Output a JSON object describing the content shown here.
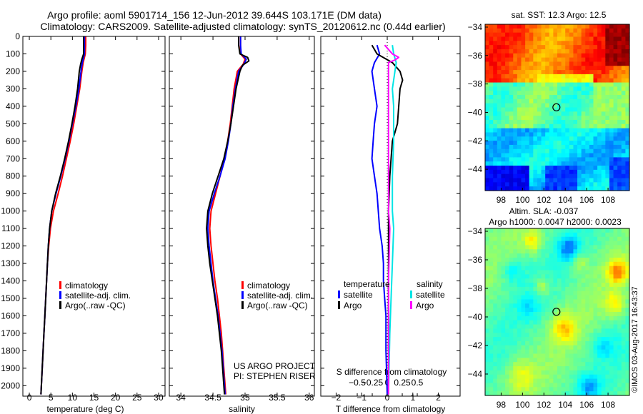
{
  "title_line1": "Argo profile: aoml 5901714_156 12-Jun-2012 39.644S 103.171E (DM data)",
  "title_line2": "Climatology: CARS2009. Satellite-adjusted climatology: synTS_20120612.nc (0.44d earlier)",
  "project_line1": "US ARGO PROJECT",
  "project_line2": "PI: STEPHEN RISER",
  "footer_stamp": "©IMOS 03-Aug-2017 16:43:37",
  "colors": {
    "climatology": "#ff0000",
    "satellite": "#0000ff",
    "argo": "#000000",
    "sal_satellite": "#00e5e5",
    "sal_argo": "#ff00ff"
  },
  "chart_data": [
    {
      "type": "line",
      "name": "temperature-profile",
      "xlabel": "temperature (deg C)",
      "xlim": [
        -1.5,
        31.5
      ],
      "ylim": [
        0,
        2060
      ],
      "y_reversed": true,
      "xticks": [
        0,
        5,
        10,
        15,
        20,
        25,
        30
      ],
      "yticks": [
        0,
        100,
        200,
        300,
        400,
        500,
        600,
        700,
        800,
        900,
        1000,
        1100,
        1200,
        1300,
        1400,
        1500,
        1600,
        1700,
        1800,
        1900,
        2000
      ],
      "legend": [
        "climatology",
        "satellite-adj. clim.",
        "Argo(..raw -QC)"
      ],
      "series": [
        {
          "name": "climatology",
          "color": "#ff0000",
          "width": 2,
          "points": [
            [
              13.1,
              0
            ],
            [
              13.1,
              50
            ],
            [
              13.0,
              100
            ],
            [
              12.5,
              150
            ],
            [
              12.2,
              200
            ],
            [
              11.7,
              300
            ],
            [
              11.0,
              400
            ],
            [
              10.3,
              500
            ],
            [
              9.5,
              600
            ],
            [
              8.6,
              700
            ],
            [
              7.7,
              800
            ],
            [
              6.7,
              900
            ],
            [
              5.6,
              1000
            ],
            [
              4.9,
              1100
            ],
            [
              4.5,
              1200
            ],
            [
              4.2,
              1300
            ],
            [
              4.0,
              1400
            ],
            [
              3.8,
              1500
            ],
            [
              3.6,
              1600
            ],
            [
              3.4,
              1700
            ],
            [
              3.2,
              1800
            ],
            [
              3.0,
              1900
            ],
            [
              2.8,
              2000
            ],
            [
              2.7,
              2050
            ]
          ]
        },
        {
          "name": "satellite-adj. clim.",
          "color": "#0000ff",
          "width": 2,
          "points": [
            [
              12.8,
              0
            ],
            [
              12.8,
              50
            ],
            [
              12.8,
              100
            ],
            [
              12.3,
              150
            ],
            [
              12.0,
              200
            ],
            [
              11.5,
              300
            ],
            [
              10.8,
              400
            ],
            [
              10.0,
              500
            ],
            [
              9.2,
              600
            ],
            [
              8.3,
              700
            ],
            [
              7.3,
              800
            ],
            [
              6.2,
              900
            ],
            [
              5.2,
              1000
            ],
            [
              4.7,
              1100
            ],
            [
              4.4,
              1200
            ],
            [
              4.2,
              1300
            ],
            [
              4.0,
              1400
            ],
            [
              3.8,
              1500
            ],
            [
              3.6,
              1600
            ],
            [
              3.4,
              1700
            ],
            [
              3.2,
              1800
            ],
            [
              3.0,
              1900
            ],
            [
              2.8,
              2000
            ],
            [
              2.7,
              2050
            ]
          ]
        },
        {
          "name": "Argo(..raw -QC)",
          "color": "#000000",
          "width": 2,
          "points": [
            [
              12.6,
              0
            ],
            [
              12.6,
              50
            ],
            [
              12.6,
              100
            ],
            [
              12.2,
              130
            ],
            [
              11.9,
              160
            ],
            [
              11.6,
              200
            ],
            [
              11.2,
              300
            ],
            [
              10.6,
              400
            ],
            [
              9.9,
              500
            ],
            [
              9.1,
              600
            ],
            [
              8.2,
              700
            ],
            [
              7.2,
              800
            ],
            [
              6.1,
              900
            ],
            [
              5.2,
              1000
            ],
            [
              4.7,
              1100
            ],
            [
              4.4,
              1200
            ],
            [
              4.2,
              1300
            ],
            [
              4.0,
              1400
            ],
            [
              3.8,
              1500
            ],
            [
              3.6,
              1600
            ],
            [
              3.4,
              1700
            ],
            [
              3.2,
              1800
            ],
            [
              3.0,
              1900
            ],
            [
              2.8,
              2000
            ],
            [
              2.7,
              2050
            ]
          ]
        }
      ]
    },
    {
      "type": "line",
      "name": "salinity-profile",
      "xlabel": "salinity",
      "xlim": [
        33.82,
        36.08
      ],
      "ylim": [
        0,
        2060
      ],
      "y_reversed": true,
      "xticks": [
        34,
        34.5,
        35,
        35.5,
        36
      ],
      "legend": [
        "climatology",
        "satellite-adj. clim.",
        "Argo(..raw -QC)"
      ],
      "series": [
        {
          "name": "climatology",
          "color": "#ff0000",
          "width": 2,
          "points": [
            [
              34.93,
              0
            ],
            [
              34.93,
              50
            ],
            [
              34.93,
              100
            ],
            [
              35.0,
              130
            ],
            [
              34.97,
              160
            ],
            [
              34.88,
              200
            ],
            [
              34.83,
              300
            ],
            [
              34.8,
              400
            ],
            [
              34.77,
              500
            ],
            [
              34.73,
              600
            ],
            [
              34.68,
              700
            ],
            [
              34.61,
              800
            ],
            [
              34.54,
              900
            ],
            [
              34.47,
              1000
            ],
            [
              34.45,
              1100
            ],
            [
              34.47,
              1200
            ],
            [
              34.5,
              1300
            ],
            [
              34.53,
              1400
            ],
            [
              34.57,
              1500
            ],
            [
              34.6,
              1600
            ],
            [
              34.63,
              1700
            ],
            [
              34.65,
              1800
            ],
            [
              34.67,
              1900
            ],
            [
              34.69,
              2000
            ],
            [
              34.7,
              2050
            ]
          ]
        },
        {
          "name": "satellite-adj. clim.",
          "color": "#0000ff",
          "width": 2,
          "points": [
            [
              34.93,
              0
            ],
            [
              34.93,
              50
            ],
            [
              34.94,
              100
            ],
            [
              35.02,
              130
            ],
            [
              34.98,
              160
            ],
            [
              34.9,
              200
            ],
            [
              34.85,
              300
            ],
            [
              34.81,
              400
            ],
            [
              34.78,
              500
            ],
            [
              34.74,
              600
            ],
            [
              34.69,
              700
            ],
            [
              34.61,
              800
            ],
            [
              34.52,
              900
            ],
            [
              34.44,
              1000
            ],
            [
              34.42,
              1100
            ],
            [
              34.44,
              1200
            ],
            [
              34.47,
              1300
            ],
            [
              34.5,
              1400
            ],
            [
              34.54,
              1500
            ],
            [
              34.58,
              1600
            ],
            [
              34.61,
              1700
            ],
            [
              34.64,
              1800
            ],
            [
              34.66,
              1900
            ],
            [
              34.68,
              2000
            ],
            [
              34.69,
              2050
            ]
          ]
        },
        {
          "name": "Argo(..raw -QC)",
          "color": "#000000",
          "width": 2,
          "points": [
            [
              34.9,
              0
            ],
            [
              34.9,
              50
            ],
            [
              34.92,
              100
            ],
            [
              35.04,
              120
            ],
            [
              35.06,
              140
            ],
            [
              34.96,
              165
            ],
            [
              34.92,
              200
            ],
            [
              34.86,
              300
            ],
            [
              34.82,
              400
            ],
            [
              34.78,
              500
            ],
            [
              34.73,
              600
            ],
            [
              34.67,
              700
            ],
            [
              34.58,
              800
            ],
            [
              34.49,
              900
            ],
            [
              34.42,
              1000
            ],
            [
              34.4,
              1100
            ],
            [
              34.42,
              1200
            ],
            [
              34.45,
              1300
            ],
            [
              34.49,
              1400
            ],
            [
              34.53,
              1500
            ],
            [
              34.57,
              1600
            ],
            [
              34.6,
              1700
            ],
            [
              34.63,
              1800
            ],
            [
              34.65,
              1900
            ],
            [
              34.67,
              2000
            ],
            [
              34.68,
              2050
            ]
          ]
        }
      ]
    },
    {
      "type": "line",
      "name": "difference-profile",
      "xlabel": "T difference from climatology",
      "xlabel2": "S difference from climatology",
      "xlim": [
        -2.6,
        2.85
      ],
      "ylim": [
        0,
        2060
      ],
      "y_reversed": true,
      "xticks": [
        -2,
        -1,
        0,
        1,
        2
      ],
      "xticks2": [
        -0.5,
        -0.25,
        0,
        0.25,
        0.5
      ],
      "xticks2_labels": [
        "−0.5",
        "−0.25",
        "0",
        "0.25",
        "0.5"
      ],
      "legend_temperature_title": "temperature",
      "legend_salinity_title": "salinity",
      "legend_temperature": [
        "satellite",
        "Argo"
      ],
      "legend_salinity": [
        "satellite",
        "Argo"
      ],
      "series": [
        {
          "name": "temperature satellite",
          "color": "#0000ff",
          "width": 2,
          "points": [
            [
              -0.4,
              50
            ],
            [
              -0.3,
              100
            ],
            [
              -0.5,
              150
            ],
            [
              -0.6,
              200
            ],
            [
              -0.5,
              300
            ],
            [
              -0.4,
              400
            ],
            [
              -0.5,
              500
            ],
            [
              -0.55,
              600
            ],
            [
              -0.6,
              700
            ],
            [
              -0.5,
              800
            ],
            [
              -0.4,
              900
            ],
            [
              -0.35,
              1000
            ],
            [
              -0.3,
              1100
            ],
            [
              -0.2,
              1200
            ],
            [
              -0.15,
              1300
            ],
            [
              -0.15,
              1400
            ],
            [
              -0.1,
              1500
            ],
            [
              -0.05,
              1600
            ],
            [
              -0.05,
              1800
            ],
            [
              0.0,
              2050
            ]
          ]
        },
        {
          "name": "temperature Argo",
          "color": "#000000",
          "width": 2,
          "points": [
            [
              -0.6,
              50
            ],
            [
              -0.4,
              100
            ],
            [
              0.2,
              150
            ],
            [
              0.5,
              200
            ],
            [
              0.6,
              250
            ],
            [
              0.5,
              300
            ],
            [
              0.45,
              400
            ],
            [
              0.4,
              500
            ],
            [
              0.2,
              600
            ],
            [
              0.15,
              700
            ],
            [
              0.1,
              800
            ],
            [
              0.05,
              1000
            ],
            [
              0.05,
              1300
            ],
            [
              0.05,
              1500
            ],
            [
              0.05,
              2050
            ]
          ]
        },
        {
          "name": "salinity satellite",
          "color": "#00e5e5",
          "width": 2,
          "points": [
            [
              0.2,
              50
            ],
            [
              0.25,
              100
            ],
            [
              0.35,
              150
            ],
            [
              0.3,
              200
            ],
            [
              0.2,
              300
            ],
            [
              0.25,
              400
            ],
            [
              0.25,
              600
            ],
            [
              0.2,
              800
            ],
            [
              0.2,
              1000
            ],
            [
              0.25,
              1100
            ],
            [
              0.2,
              1300
            ],
            [
              0.15,
              1500
            ],
            [
              0.1,
              1700
            ],
            [
              0.05,
              2050
            ]
          ]
        },
        {
          "name": "salinity Argo",
          "color": "#ff00ff",
          "width": 2,
          "points": [
            [
              -0.1,
              50
            ],
            [
              0.2,
              100
            ],
            [
              0.45,
              120
            ],
            [
              0.3,
              135
            ],
            [
              0.05,
              150
            ],
            [
              0.05,
              300
            ],
            [
              0.05,
              600
            ],
            [
              0.05,
              1000
            ],
            [
              0.1,
              1100
            ],
            [
              0.05,
              1400
            ],
            [
              0.05,
              2050
            ]
          ]
        }
      ]
    },
    {
      "type": "heatmap",
      "name": "sst-map",
      "title": "sat. SST: 12.3 Argo: 12.5",
      "xlim": [
        96.5,
        110
      ],
      "ylim": [
        -45.5,
        -33.8
      ],
      "xticks": [
        98,
        100,
        102,
        104,
        106,
        108
      ],
      "yticks": [
        -34,
        -36,
        -38,
        -40,
        -42,
        -44
      ],
      "marker": [
        103.17,
        -39.64
      ]
    },
    {
      "type": "heatmap",
      "name": "sla-map",
      "title": "Altim. SLA: -0.037",
      "subtitle": "Argo h1000: 0.0047 h2000: 0.0023",
      "xlim": [
        96.5,
        110
      ],
      "ylim": [
        -45.5,
        -33.8
      ],
      "xticks": [
        98,
        100,
        102,
        104,
        106,
        108
      ],
      "yticks": [
        -34,
        -36,
        -38,
        -40,
        -42,
        -44
      ],
      "marker": [
        103.17,
        -39.64
      ]
    }
  ]
}
